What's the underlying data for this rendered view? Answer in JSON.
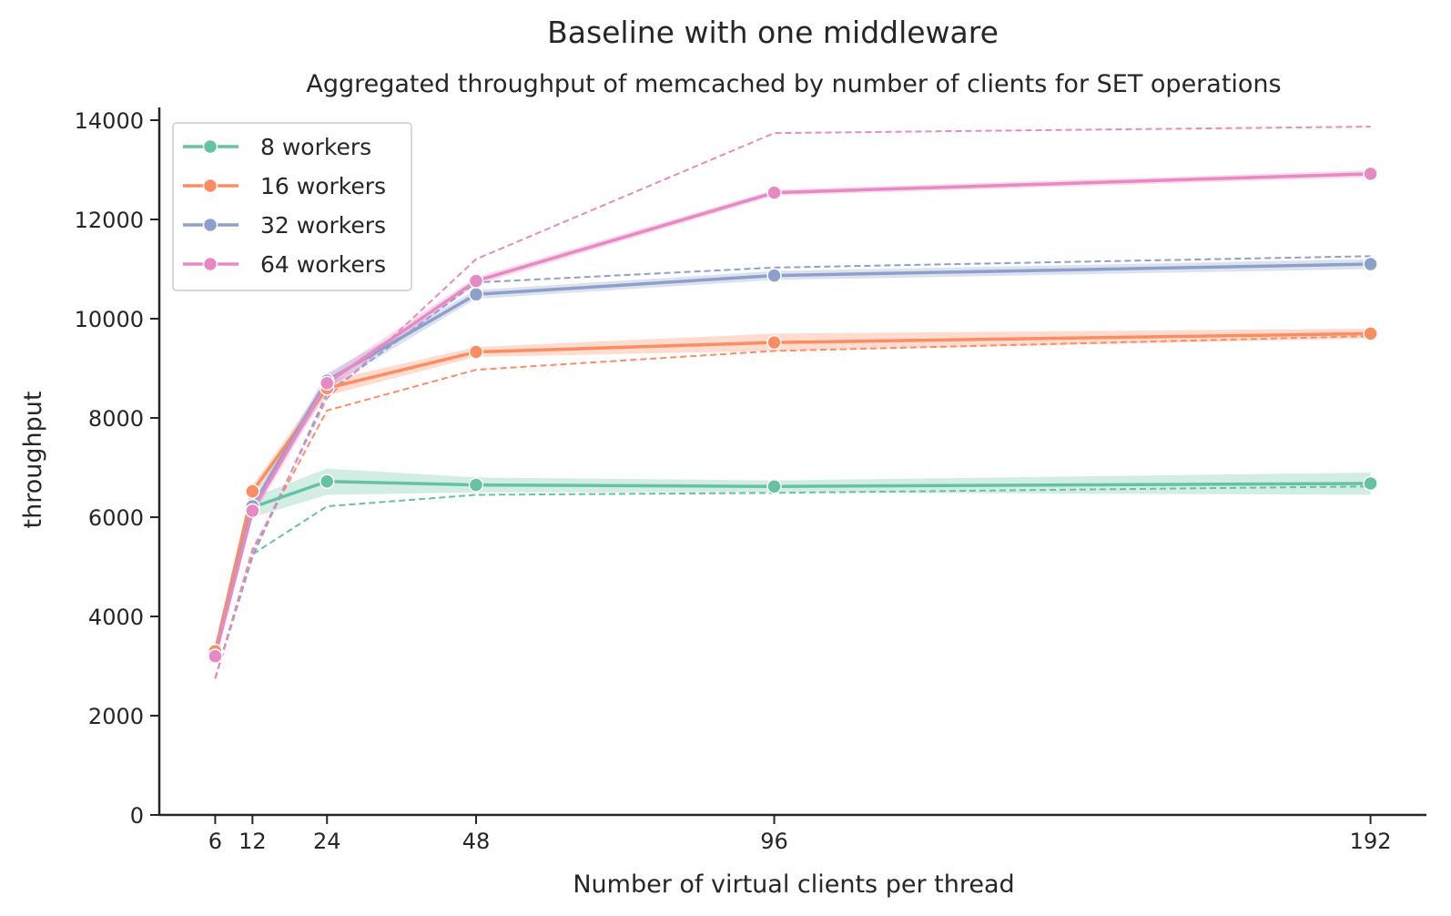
{
  "figure": {
    "suptitle": "Baseline with one middleware"
  },
  "chart_data": {
    "type": "line",
    "title": "Aggregated throughput of memcached by number of clients for SET operations",
    "xlabel": "Number of virtual clients per thread",
    "ylabel": "throughput",
    "x": [
      6,
      12,
      24,
      48,
      96,
      192
    ],
    "x_ticks": [
      "6",
      "12",
      "24",
      "48",
      "96",
      "192"
    ],
    "xlim": [
      -3,
      201
    ],
    "ylim": [
      0,
      14000
    ],
    "y_ticks": [
      "0",
      "2000",
      "4000",
      "6000",
      "8000",
      "10000",
      "12000",
      "14000"
    ],
    "grid": false,
    "legend_position": "top-left",
    "series": [
      {
        "name": "8 workers",
        "color": "#66c2a5",
        "values": [
          3250,
          6200,
          6720,
          6650,
          6620,
          6680
        ],
        "ci_low": [
          3150,
          6000,
          6450,
          6500,
          6500,
          6450
        ],
        "ci_high": [
          3350,
          6400,
          6980,
          6800,
          6740,
          6900
        ],
        "dashed_values": [
          2750,
          5250,
          6220,
          6450,
          6490,
          6620
        ]
      },
      {
        "name": "16 workers",
        "color": "#fc8d62",
        "values": [
          3300,
          6520,
          8600,
          9330,
          9520,
          9700
        ],
        "ci_low": [
          3200,
          6400,
          8450,
          9230,
          9350,
          9600
        ],
        "ci_high": [
          3400,
          6640,
          8750,
          9430,
          9700,
          9800
        ],
        "dashed_values": [
          2750,
          5350,
          8150,
          8970,
          9350,
          9650
        ]
      },
      {
        "name": "32 workers",
        "color": "#8da0cb",
        "values": [
          3200,
          6220,
          8750,
          10490,
          10870,
          11100
        ],
        "ci_low": [
          3100,
          6100,
          8600,
          10400,
          10780,
          11000
        ],
        "ci_high": [
          3300,
          6340,
          8900,
          10580,
          10960,
          11200
        ],
        "dashed_values": [
          2750,
          5200,
          8500,
          10730,
          11030,
          11260
        ]
      },
      {
        "name": "64 workers",
        "color": "#e78ac3",
        "values": [
          3200,
          6130,
          8700,
          10760,
          12540,
          12920
        ],
        "ci_low": [
          3100,
          6000,
          8550,
          10680,
          12480,
          12850
        ],
        "ci_high": [
          3300,
          6260,
          8850,
          10840,
          12600,
          12990
        ],
        "dashed_values": [
          2750,
          5300,
          8400,
          11200,
          13740,
          13870
        ]
      }
    ]
  }
}
